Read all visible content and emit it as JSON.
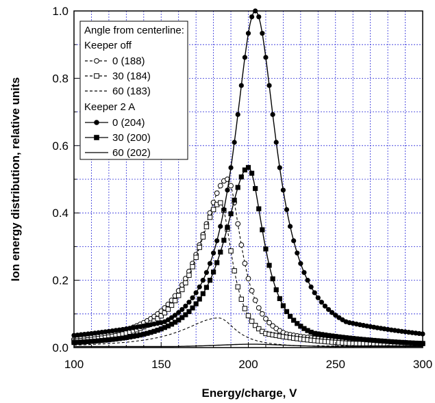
{
  "chart_data": {
    "type": "line",
    "title": "",
    "xlabel": "Energy/charge, V",
    "ylabel": "Ion energy distribution, relative units",
    "xlim": [
      100,
      300
    ],
    "ylim": [
      0,
      1.0
    ],
    "x_ticks": [
      "100",
      "150",
      "200",
      "250",
      "300"
    ],
    "y_ticks": [
      "0.0",
      "0.2",
      "0.4",
      "0.6",
      "0.8",
      "1.0"
    ],
    "grid": true,
    "grid_color": "#2b2bd9",
    "legend": {
      "position": "top-left",
      "header": "Angle from centerline:",
      "groups": [
        {
          "label": "Keeper off",
          "entries": [
            "0 (188)",
            "30 (184)",
            "60 (183)"
          ]
        },
        {
          "label": "Keeper 2 A",
          "entries": [
            "0 (204)",
            "30 (200)",
            "60 (202)"
          ]
        }
      ]
    },
    "series": [
      {
        "name": "Keeper off 0 (188)",
        "style": "dashed",
        "marker": "open-circle",
        "peak": 188,
        "amplitude": 0.5,
        "width_left": 20,
        "width_right": 10,
        "tail_amp": 0.09,
        "tail_width": 42,
        "floor": 0.012
      },
      {
        "name": "Keeper off 30 (184)",
        "style": "dashed",
        "marker": "open-square",
        "peak": 184,
        "amplitude": 0.43,
        "width_left": 18,
        "width_right": 8.5,
        "tail_amp": 0.08,
        "tail_width": 40,
        "floor": 0.012
      },
      {
        "name": "Keeper off 60 (183)",
        "style": "dashed",
        "marker": "none",
        "peak": 183,
        "amplitude": 0.088,
        "width_left": 25,
        "width_right": 12,
        "tail_amp": 0.012,
        "tail_width": 40,
        "floor": 0.005
      },
      {
        "name": "Keeper 2 A 0 (204)",
        "style": "solid",
        "marker": "filled-circle",
        "peak": 204,
        "amplitude": 1.0,
        "width_left": 15,
        "width_right": 15,
        "tail_amp": 0.16,
        "tail_width": 70,
        "floor": 0.0
      },
      {
        "name": "Keeper 2 A 30 (200)",
        "style": "solid",
        "marker": "filled-square",
        "peak": 200,
        "amplitude": 0.535,
        "width_left": 17,
        "width_right": 11,
        "tail_amp": 0.09,
        "tail_width": 50,
        "floor": 0.0
      },
      {
        "name": "Keeper 2 A 60 (202)",
        "style": "solid",
        "marker": "none",
        "peak": 202,
        "amplitude": 0.01,
        "width_left": 30,
        "width_right": 30,
        "tail_amp": 0.0,
        "tail_width": 30,
        "floor": 0.003
      }
    ]
  }
}
